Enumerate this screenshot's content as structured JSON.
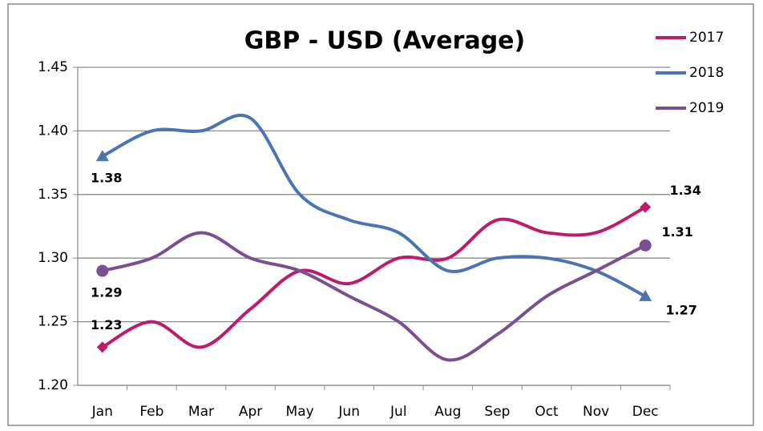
{
  "chart_data": {
    "type": "line",
    "title": "GBP - USD (Average)",
    "categories": [
      "Jan",
      "Feb",
      "Mar",
      "Apr",
      "May",
      "Jun",
      "Jul",
      "Aug",
      "Sep",
      "Oct",
      "Nov",
      "Dec"
    ],
    "series": [
      {
        "name": "2017",
        "color": "#bf1a6b",
        "marker": "diamond",
        "values": [
          1.23,
          1.25,
          1.23,
          1.26,
          1.29,
          1.28,
          1.3,
          1.3,
          1.33,
          1.32,
          1.32,
          1.34
        ]
      },
      {
        "name": "2018",
        "color": "#4a74b3",
        "marker": "triangle",
        "values": [
          1.38,
          1.4,
          1.4,
          1.41,
          1.35,
          1.33,
          1.32,
          1.29,
          1.3,
          1.3,
          1.29,
          1.27
        ]
      },
      {
        "name": "2019",
        "color": "#7a4f94",
        "marker": "circle",
        "values": [
          1.29,
          1.3,
          1.32,
          1.3,
          1.29,
          1.27,
          1.25,
          1.22,
          1.24,
          1.27,
          1.29,
          1.31
        ]
      }
    ],
    "ylim": [
      1.2,
      1.45
    ],
    "yticks": [
      {
        "value": 1.2,
        "label": "1.20"
      },
      1.25,
      {
        "value": 1.3,
        "label": "1.30"
      },
      1.35,
      {
        "value": 1.4,
        "label": "1.40"
      },
      1.45
    ],
    "grid": true,
    "legend": "top-right"
  }
}
